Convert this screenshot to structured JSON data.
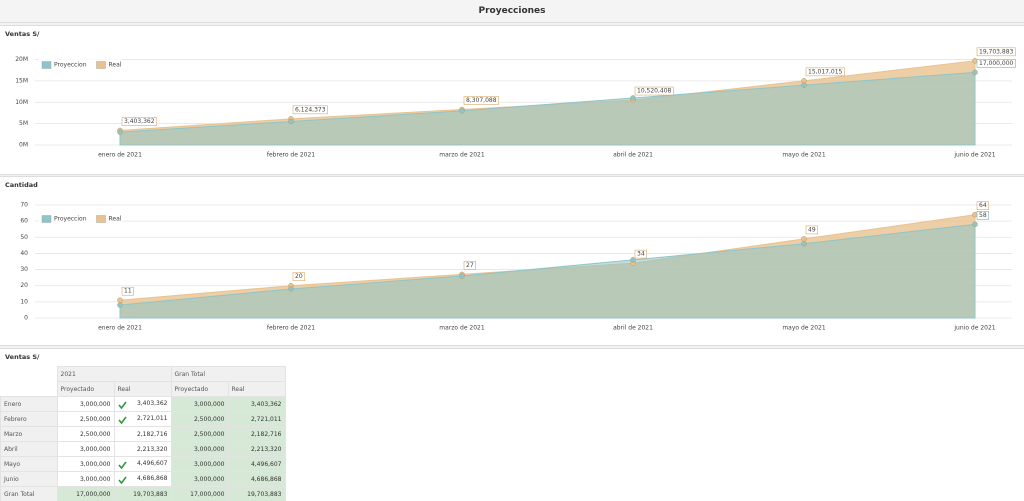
{
  "title": "Proyecciones",
  "chart_data": [
    {
      "type": "area",
      "title": "Ventas S/",
      "categories": [
        "enero de 2021",
        "febrero de 2021",
        "marzo de 2021",
        "abril de 2021",
        "mayo de 2021",
        "junio de 2021"
      ],
      "series": [
        {
          "name": "Proyeccion",
          "color": "#8ec5c9",
          "values": [
            3000000,
            5500000,
            8000000,
            11000000,
            14000000,
            17000000
          ],
          "value_labels": [
            null,
            null,
            null,
            null,
            null,
            "17,000,000"
          ]
        },
        {
          "name": "Real",
          "color": "#e9c28f",
          "values": [
            3403362,
            6124373,
            8307088,
            10520408,
            15017015,
            19703883
          ],
          "value_labels": [
            "3,403,362",
            "6,124,373",
            "8,307,088",
            "10,520,408",
            "15,017,015",
            "19,703,883"
          ]
        }
      ],
      "ylim": [
        0,
        22000000
      ],
      "yticks": [
        {
          "value": 0,
          "label": "0M"
        },
        {
          "value": 5000000,
          "label": "5M"
        },
        {
          "value": 10000000,
          "label": "10M"
        },
        {
          "value": 15000000,
          "label": "15M"
        },
        {
          "value": 20000000,
          "label": "20M"
        }
      ],
      "grid": true,
      "legend": "upper left"
    },
    {
      "type": "area",
      "title": "Cantidad",
      "categories": [
        "enero de 2021",
        "febrero de 2021",
        "marzo de 2021",
        "abril de 2021",
        "mayo de 2021",
        "junio de 2021"
      ],
      "series": [
        {
          "name": "Proyeccion",
          "color": "#8ec5c9",
          "values": [
            8,
            18,
            26,
            36,
            46,
            58
          ],
          "value_labels": [
            null,
            null,
            null,
            null,
            null,
            "58"
          ]
        },
        {
          "name": "Real",
          "color": "#e9c28f",
          "values": [
            11,
            20,
            27,
            34,
            49,
            64
          ],
          "value_labels": [
            "11",
            "20",
            "27",
            "34",
            "49",
            "64"
          ]
        }
      ],
      "ylim": [
        0,
        70
      ],
      "yticks": [
        0,
        10,
        20,
        30,
        40,
        50,
        60,
        70
      ],
      "grid": true,
      "legend": "upper left"
    }
  ],
  "table": {
    "title": "Ventas S/",
    "groups": [
      "2021",
      "Gran Total"
    ],
    "columns": [
      "Proyectado",
      "Real",
      "Proyectado",
      "Real"
    ],
    "rows": [
      [
        "Enero",
        "3,000,000",
        "3,403,362",
        "3,000,000",
        "3,403,362"
      ],
      [
        "Febrero",
        "2,500,000",
        "2,721,011",
        "2,500,000",
        "2,721,011"
      ],
      [
        "Marzo",
        "2,500,000",
        "2,182,716",
        "2,500,000",
        "2,182,716"
      ],
      [
        "Abril",
        "3,000,000",
        "2,213,320",
        "3,000,000",
        "2,213,320"
      ],
      [
        "Mayo",
        "3,000,000",
        "4,496,607",
        "3,000,000",
        "4,496,607"
      ],
      [
        "Junio",
        "3,000,000",
        "4,686,868",
        "3,000,000",
        "4,686,868"
      ],
      [
        "Gran Total",
        "17,000,000",
        "19,703,883",
        "17,000,000",
        "19,703,883"
      ]
    ],
    "checks": [
      true,
      true,
      false,
      false,
      true,
      true,
      false
    ]
  }
}
